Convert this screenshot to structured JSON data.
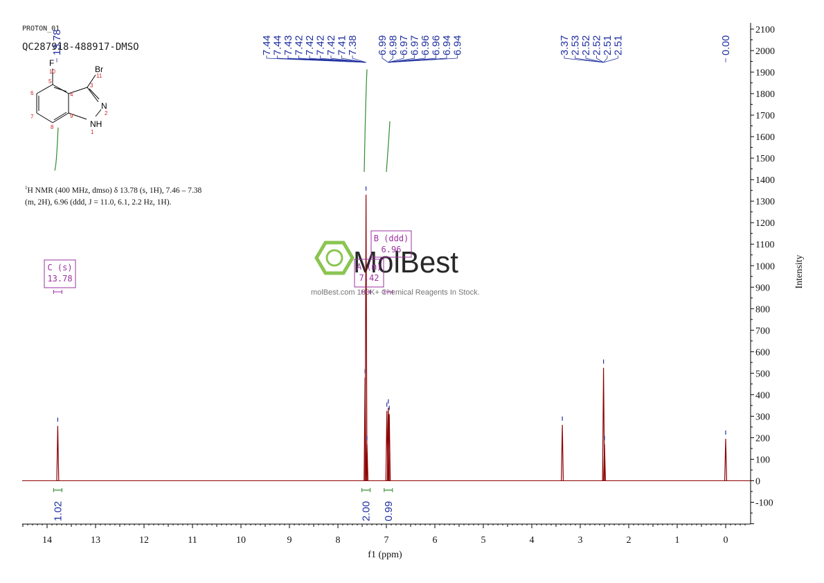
{
  "header": {
    "experiment": "PROTON_01",
    "sample": "QC287918-488917-DMSO"
  },
  "description": {
    "prefix": "1",
    "line1": "H NMR (400 MHz, dmso) δ 13.78 (s, 1H), 7.46 – 7.38",
    "line2": "(m, 2H), 6.96 (ddd, J = 11.0, 6.1, 2.2 Hz, 1H)."
  },
  "watermark": {
    "brand": "MolBest",
    "tagline": "molBest.com  180K+ Chemical Reagents In Stock."
  },
  "structure": {
    "atoms": [
      {
        "label": "F",
        "num": "10"
      },
      {
        "label": "Br",
        "num": "11"
      },
      {
        "label": "N",
        "num": "2"
      },
      {
        "label": "NH",
        "num": "1"
      }
    ],
    "ring_numbers": [
      "5",
      "6",
      "7",
      "8",
      "9",
      "4",
      "3"
    ]
  },
  "peak_labels": {
    "group1": [
      "13.78"
    ],
    "group2": [
      "7.44",
      "7.44",
      "7.43",
      "7.42",
      "7.42",
      "7.42",
      "7.42",
      "7.41",
      "7.38"
    ],
    "group3": [
      "6.99",
      "6.98",
      "6.97",
      "6.97",
      "6.96",
      "6.96",
      "6.94",
      "6.94"
    ],
    "group4": [
      "3.37",
      "2.53",
      "2.52",
      "2.52",
      "2.51",
      "2.51"
    ],
    "group5": [
      "0.00"
    ]
  },
  "multiplets": [
    {
      "label": "C (s)",
      "shift": "13.78",
      "x": 13.78
    },
    {
      "label": "A (m)",
      "shift": "7.42",
      "x": 7.42
    },
    {
      "label": "B (ddd)",
      "shift": "6.96",
      "x": 6.96
    }
  ],
  "integrals": [
    {
      "value": "1.02",
      "x": 13.78
    },
    {
      "value": "2.00",
      "x": 7.42
    },
    {
      "value": "0.99",
      "x": 6.96
    }
  ],
  "colors": {
    "spectrum": "#8b0000",
    "peak_label": "#1f2fa0",
    "integral": "#2e8b2e",
    "multiplet": "#9b30a0",
    "watermark": "#7fbf3f"
  },
  "chart_data": {
    "type": "line",
    "xlabel": "f1 (ppm)",
    "ylabel": "Intensity",
    "xlim": [
      14.5,
      -0.5
    ],
    "ylim": [
      -200,
      2100
    ],
    "x_ticks": [
      "14",
      "13",
      "12",
      "11",
      "10",
      "9",
      "8",
      "7",
      "6",
      "5",
      "4",
      "3",
      "2",
      "1",
      "0"
    ],
    "y_ticks": [
      "-100",
      "0",
      "100",
      "200",
      "300",
      "400",
      "500",
      "600",
      "700",
      "800",
      "900",
      "1000",
      "1100",
      "1200",
      "1300",
      "1400",
      "1500",
      "1600",
      "1700",
      "1800",
      "1900",
      "2000",
      "2100"
    ],
    "peaks": [
      {
        "x": 13.78,
        "y": 255
      },
      {
        "x": 7.44,
        "y": 480
      },
      {
        "x": 7.42,
        "y": 1330
      },
      {
        "x": 7.4,
        "y": 170
      },
      {
        "x": 6.99,
        "y": 325
      },
      {
        "x": 6.96,
        "y": 340
      },
      {
        "x": 6.94,
        "y": 310
      },
      {
        "x": 3.37,
        "y": 260
      },
      {
        "x": 2.52,
        "y": 525
      },
      {
        "x": 2.5,
        "y": 170
      },
      {
        "x": 0.0,
        "y": 195
      }
    ]
  }
}
